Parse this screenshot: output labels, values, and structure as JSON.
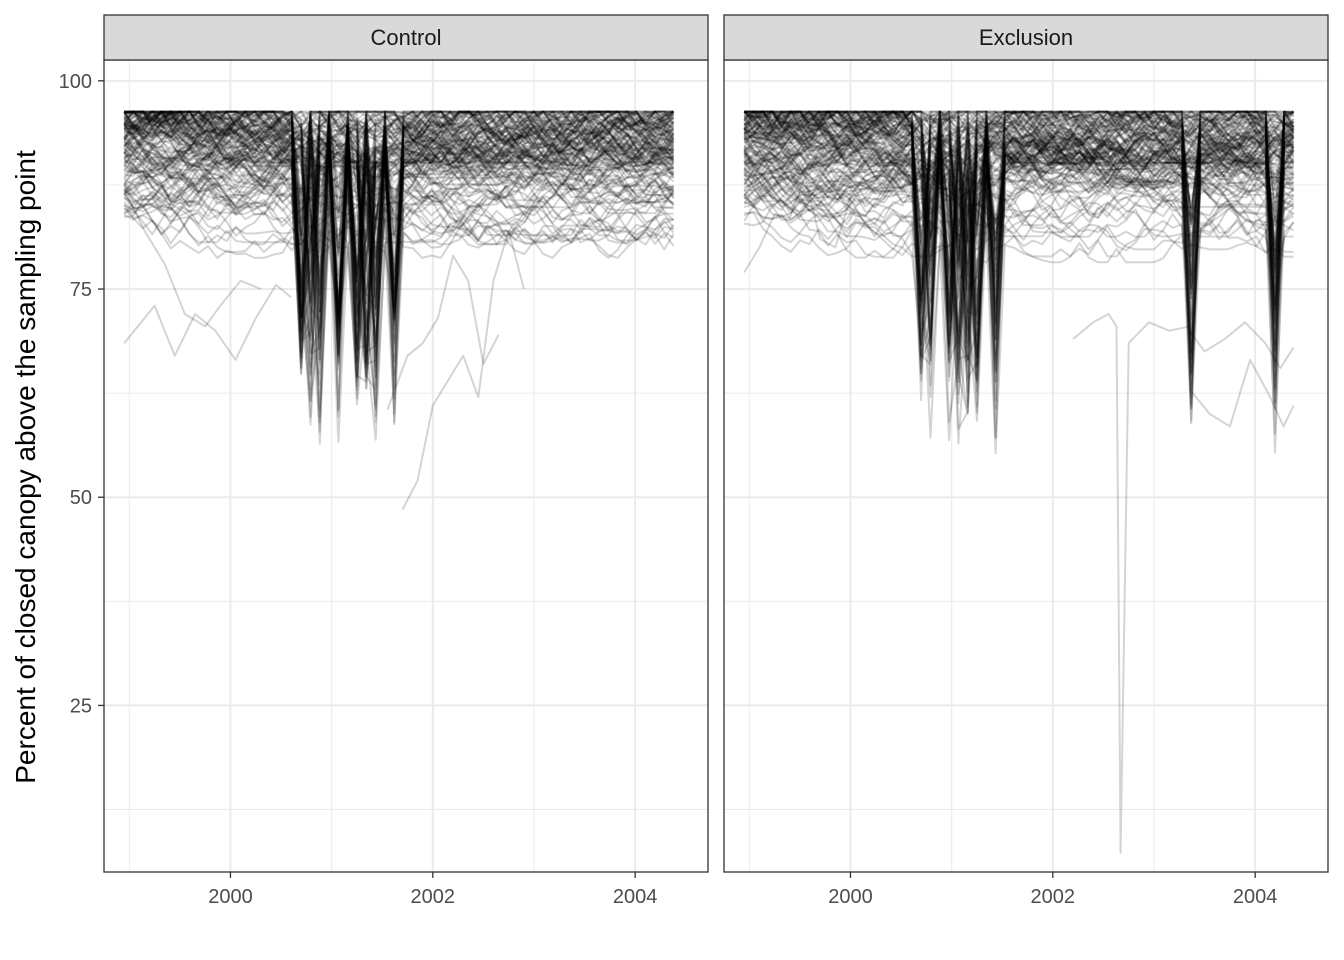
{
  "chart_data": {
    "type": "line",
    "facets": [
      "Control",
      "Exclusion"
    ],
    "ylabel": "Percent of closed canopy above the sampling point",
    "xlabel": "",
    "xlim": [
      1998.75,
      2004.72
    ],
    "ylim": [
      5,
      102.5
    ],
    "xticks": [
      2000,
      2002,
      2004
    ],
    "xtick_labels": [
      "2000",
      "2002",
      "2004"
    ],
    "yticks": [
      25,
      50,
      75,
      100
    ],
    "ytick_labels": [
      "25",
      "50",
      "75",
      "100"
    ],
    "grid": true,
    "legend": "none",
    "line_color": "#000000",
    "line_alpha": 0.17,
    "summary": {
      "Control": {
        "series_count": 150,
        "x_range": [
          1998.95,
          2004.38
        ],
        "upper_envelope": 96.3,
        "lowest_values": [
          {
            "x": 2001.22,
            "y": 47.1
          },
          {
            "x": 2001.32,
            "y": 46.1
          },
          {
            "x": 2001.45,
            "y": 46.4
          },
          {
            "x": 2001.48,
            "y": 48.5
          }
        ],
        "deep_dip_dates": [
          2000.72,
          2000.85,
          2001.05,
          2001.22,
          2001.35,
          2001.45,
          2001.65
        ]
      },
      "Exclusion": {
        "series_count": 150,
        "x_range": [
          1998.95,
          2004.38
        ],
        "upper_envelope": 96.3,
        "lowest_values": [
          {
            "x": 2002.65,
            "y": 7.3
          }
        ],
        "deep_dip_dates": [
          2000.68,
          2000.8,
          2000.95,
          2001.1,
          2001.25,
          2001.45,
          2003.38,
          2004.18
        ]
      }
    },
    "series": [
      {
        "facet": "Control",
        "x": [
          1998.95,
          1999.25,
          1999.45,
          1999.65,
          1999.85,
          2000.05,
          2000.25,
          2000.45,
          2000.6
        ],
        "y": [
          68.5,
          73,
          67,
          72,
          70,
          66.5,
          71.5,
          75.5,
          74
        ]
      },
      {
        "facet": "Control",
        "x": [
          1998.95,
          1999.15,
          1999.35,
          1999.55,
          1999.75,
          1999.9,
          2000.1,
          2000.3
        ],
        "y": [
          87,
          82,
          78,
          72,
          70.5,
          73,
          76,
          75
        ]
      },
      {
        "facet": "Control",
        "x": [
          2001.7,
          2001.85,
          2002.0,
          2002.15,
          2002.3,
          2002.45,
          2002.6,
          2002.75,
          2002.9
        ],
        "y": [
          48.5,
          52,
          61,
          64,
          67,
          62,
          76,
          82,
          75
        ]
      },
      {
        "facet": "Control",
        "x": [
          2001.55,
          2001.75,
          2001.9,
          2002.05,
          2002.2,
          2002.35,
          2002.5,
          2002.65
        ],
        "y": [
          60.5,
          67,
          68.5,
          71.5,
          79,
          76,
          66,
          69.5
        ]
      },
      {
        "facet": "Exclusion",
        "x": [
          1998.95,
          1999.1,
          1999.25,
          1999.4,
          1999.55,
          1999.7,
          1999.85,
          2000.0
        ],
        "y": [
          77,
          80,
          84,
          83.5,
          88.5,
          81,
          80,
          86
        ]
      },
      {
        "facet": "Exclusion",
        "x": [
          2002.2,
          2002.4,
          2002.55,
          2002.63,
          2002.67,
          2002.75,
          2002.95,
          2003.15,
          2003.35
        ],
        "y": [
          69,
          71,
          72,
          70.5,
          7.3,
          68.5,
          71,
          70,
          70.5
        ]
      },
      {
        "facet": "Exclusion",
        "x": [
          2003.35,
          2003.55,
          2003.75,
          2003.95,
          2004.15,
          2004.28,
          2004.38
        ],
        "y": [
          63,
          60,
          58.5,
          66.5,
          62,
          58.5,
          61
        ]
      },
      {
        "facet": "Exclusion",
        "x": [
          2003.35,
          2003.5,
          2003.7,
          2003.9,
          2004.1,
          2004.25,
          2004.38
        ],
        "y": [
          70,
          67.5,
          69,
          71,
          68.5,
          65.5,
          68
        ]
      }
    ]
  }
}
